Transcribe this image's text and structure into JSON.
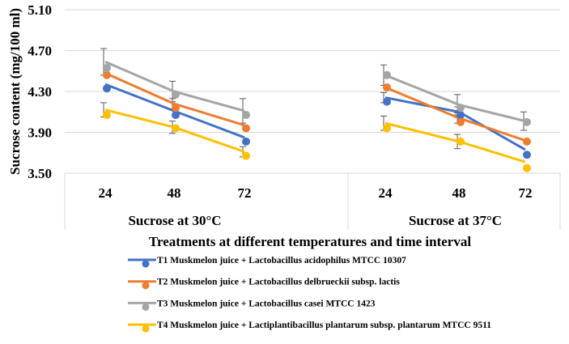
{
  "chart_data": {
    "type": "line",
    "title": "",
    "ylabel": "Sucrose content (mg/100 ml)",
    "xlabel": "Treatments at different temperatures and time interval",
    "ylim": [
      3.5,
      5.1
    ],
    "yticks": [
      "3.50",
      "3.90",
      "4.30",
      "4.70",
      "5.10"
    ],
    "grid": true,
    "legend_position": "bottom",
    "groups": [
      {
        "label": "Sucrose  at 30°C",
        "categories": [
          "24",
          "48",
          "72"
        ]
      },
      {
        "label": "Sucrose  at 37°C",
        "categories": [
          "24",
          "48",
          "72"
        ]
      }
    ],
    "series": [
      {
        "name": "T1 Muskmelon juice + Lactobacillus acidophilus MTCC 10307",
        "color": "#4472C4",
        "markers": [
          [
            4.33,
            4.07,
            3.81
          ],
          [
            4.2,
            4.07,
            3.68
          ]
        ],
        "line": [
          [
            4.37,
            4.11,
            3.85
          ],
          [
            4.24,
            4.1,
            3.73
          ]
        ],
        "error": [
          [
            0,
            0,
            0
          ],
          [
            0.05,
            0.05,
            0
          ]
        ]
      },
      {
        "name": "T2 Muskmelon juice + Lactobacillus delbrueckii subsp. lactis",
        "color": "#ED7D31",
        "markers": [
          [
            4.46,
            4.14,
            3.94
          ],
          [
            4.34,
            4.0,
            3.81
          ]
        ],
        "line": [
          [
            4.48,
            4.18,
            3.97
          ],
          [
            4.34,
            4.04,
            3.82
          ]
        ],
        "error": [
          [
            0,
            0.05,
            0
          ],
          [
            0,
            0.05,
            0
          ]
        ]
      },
      {
        "name": "T3 Muskmelon juice + Lactobacillus casei MTCC 1423",
        "color": "#A5A5A5",
        "markers": [
          [
            4.53,
            4.27,
            4.07
          ],
          [
            4.46,
            4.14,
            4.0
          ]
        ],
        "line": [
          [
            4.59,
            4.3,
            4.11
          ],
          [
            4.46,
            4.17,
            4.01
          ]
        ],
        "error": [
          [
            0.13,
            0.1,
            0.12
          ],
          [
            0.1,
            0.1,
            0.09
          ]
        ]
      },
      {
        "name": "T4 Muskmelon juice + Lactiplantibacillus plantarum subsp. plantarum MTCC 9511",
        "color": "#FFC000",
        "markers": [
          [
            4.07,
            3.94,
            3.67
          ],
          [
            3.94,
            3.81,
            3.55
          ]
        ],
        "line": [
          [
            4.12,
            3.95,
            3.71
          ],
          [
            3.99,
            3.81,
            3.61
          ]
        ],
        "error": [
          [
            0.07,
            0.06,
            0.05
          ],
          [
            0.07,
            0.07,
            0
          ]
        ]
      }
    ]
  }
}
